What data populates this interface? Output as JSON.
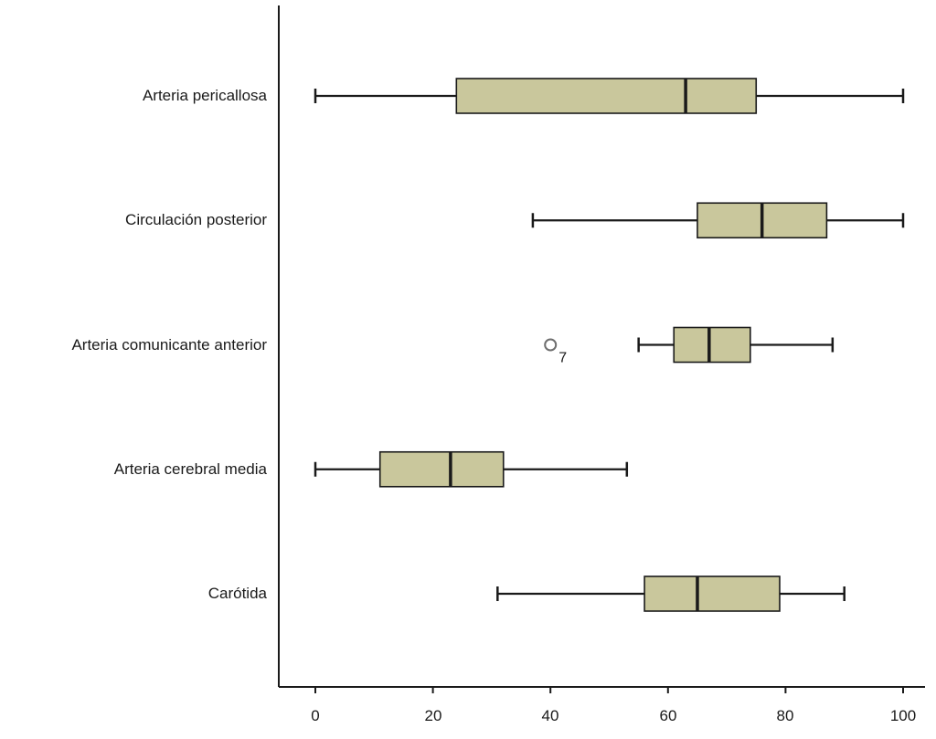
{
  "chart_data": {
    "type": "boxplot",
    "orientation": "horizontal",
    "title": "",
    "xlabel": "",
    "ylabel": "",
    "xlim": [
      0,
      100
    ],
    "x_ticks": [
      0,
      20,
      40,
      60,
      80,
      100
    ],
    "grid": false,
    "legend": "none",
    "categories": [
      "Arteria pericallosa",
      "Circulación posterior",
      "Arteria comunicante anterior",
      "Arteria cerebral media",
      "Carótida"
    ],
    "series": [
      {
        "name": "Arteria pericallosa",
        "min": 0,
        "q1": 24,
        "median": 63,
        "q3": 75,
        "max": 100,
        "outliers": []
      },
      {
        "name": "Circulación posterior",
        "min": 37,
        "q1": 65,
        "median": 76,
        "q3": 87,
        "max": 100,
        "outliers": []
      },
      {
        "name": "Arteria comunicante anterior",
        "min": 55,
        "q1": 61,
        "median": 67,
        "q3": 74,
        "max": 88,
        "outliers": [
          {
            "value": 40,
            "label": "7"
          }
        ]
      },
      {
        "name": "Arteria cerebral media",
        "min": 0,
        "q1": 11,
        "median": 23,
        "q3": 32,
        "max": 53,
        "outliers": []
      },
      {
        "name": "Carótida",
        "min": 31,
        "q1": 56,
        "median": 65,
        "q3": 79,
        "max": 90,
        "outliers": []
      }
    ],
    "colors": {
      "box_fill": "#c9c79c",
      "box_stroke": "#1a1a1a",
      "line": "#1a1a1a",
      "outlier_stroke": "#6e6e6e",
      "text": "#1a1a1a",
      "background": "#ffffff"
    }
  }
}
